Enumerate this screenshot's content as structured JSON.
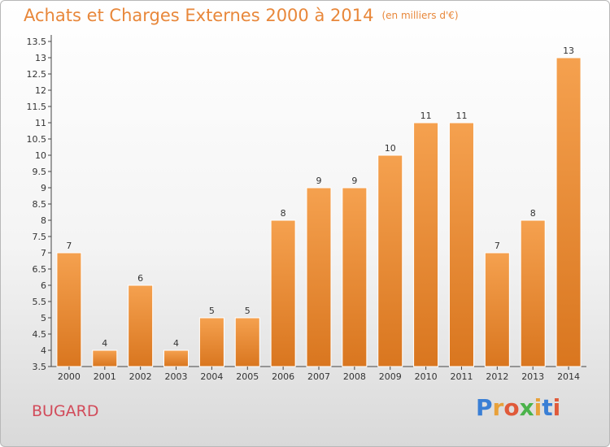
{
  "title": "Achats et Charges Externes 2000 à 2014",
  "unit": "(en milliers d'€)",
  "commune": "BUGARD",
  "logo": {
    "text": "Proxiti",
    "letters": [
      {
        "ch": "P",
        "color": "#3a7fd5"
      },
      {
        "ch": "r",
        "color": "#e8a13a"
      },
      {
        "ch": "o",
        "color": "#e05a3a"
      },
      {
        "ch": "x",
        "color": "#4bb34b"
      },
      {
        "ch": "i",
        "color": "#e8a13a"
      },
      {
        "ch": "t",
        "color": "#3a7fd5"
      },
      {
        "ch": "i",
        "color": "#e05a3a"
      }
    ]
  },
  "colors": {
    "bar_light": "#f5a14f",
    "bar_dark": "#d9761f",
    "title": "#e8873a",
    "commune": "#d24b5a"
  },
  "chart_data": {
    "type": "bar",
    "title": "Achats et Charges Externes 2000 à 2014",
    "subtitle": "(en milliers d'€)",
    "categories": [
      "2000",
      "2001",
      "2002",
      "2003",
      "2004",
      "2005",
      "2006",
      "2007",
      "2008",
      "2009",
      "2010",
      "2011",
      "2012",
      "2013",
      "2014"
    ],
    "values": [
      7,
      4,
      6,
      4,
      5,
      5,
      8,
      9,
      9,
      10,
      11,
      11,
      7,
      8,
      13
    ],
    "labels": [
      "7",
      "4",
      "6",
      "4",
      "5",
      "5",
      "8",
      "9",
      "9",
      "10",
      "11",
      "11",
      "7",
      "8",
      "13"
    ],
    "ylim": [
      3.5,
      13.5
    ],
    "yticks": [
      3.5,
      4,
      4.5,
      5,
      5.5,
      6,
      6.5,
      7,
      7.5,
      8,
      8.5,
      9,
      9.5,
      10,
      10.5,
      11,
      11.5,
      12,
      12.5,
      13,
      13.5
    ],
    "ytick_labels": [
      "3.5",
      "4",
      "4.5",
      "5",
      "5.5",
      "6",
      "6.5",
      "7",
      "7.5",
      "8",
      "8.5",
      "9",
      "9.5",
      "10",
      "10.5",
      "11",
      "11.5",
      "12",
      "12.5",
      "13",
      "13.5"
    ],
    "xlabel": "",
    "ylabel": "",
    "grid": false,
    "legend": "none"
  }
}
